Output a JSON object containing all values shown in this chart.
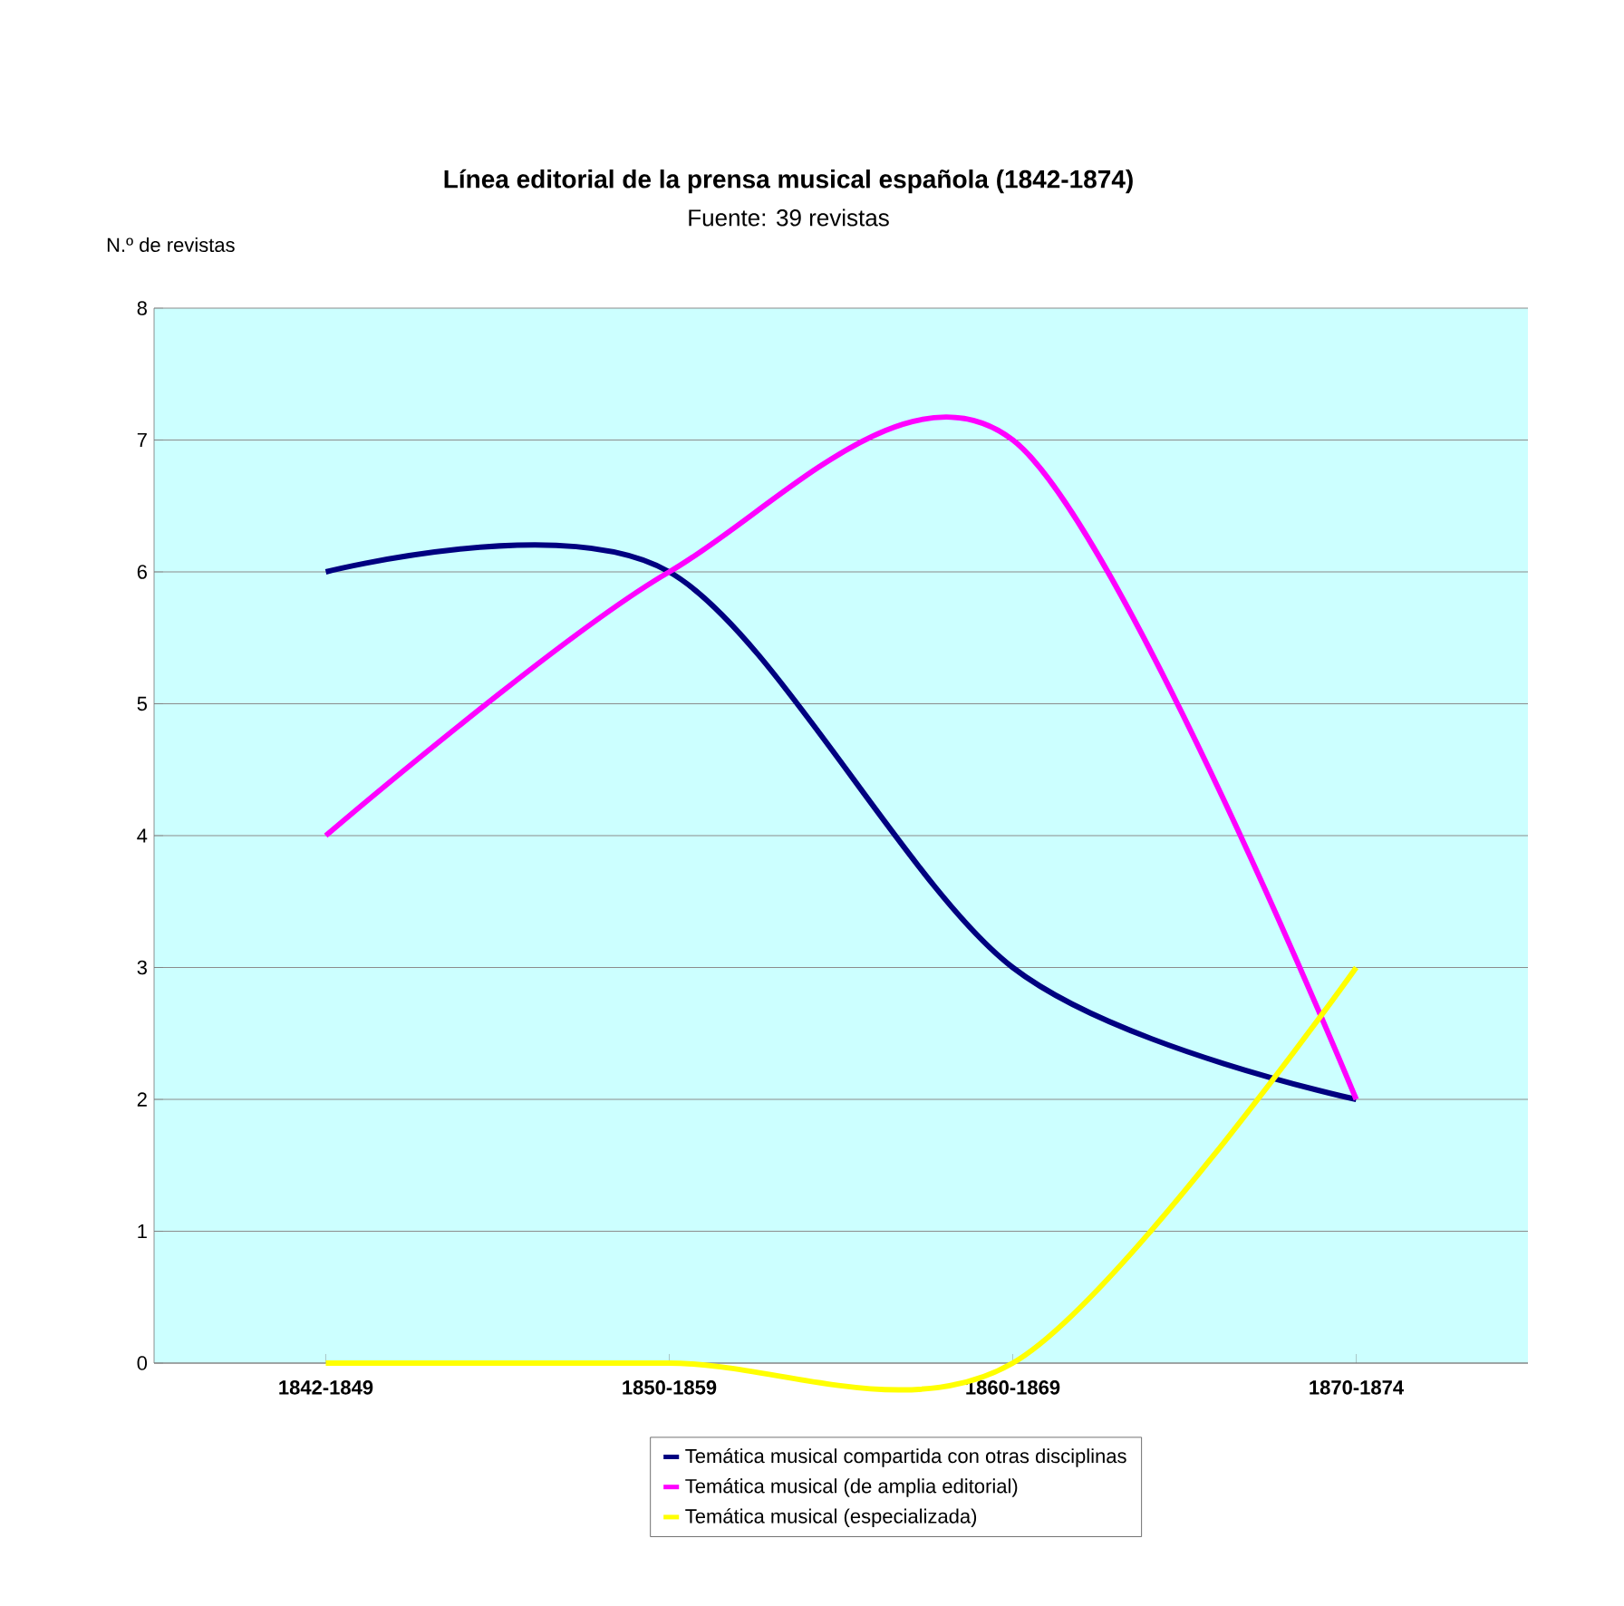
{
  "chart_data": {
    "type": "line",
    "title": "Línea editorial de la prensa musical española (1842-1874)",
    "subtitle": "Fuente: 39 revistas",
    "ylabel": "N.º de revistas",
    "categories": [
      "1842-1849",
      "1850-1859",
      "1860-1869",
      "1870-1874"
    ],
    "series": [
      {
        "name": "Temática musical compartida con otras disciplinas",
        "color": "#000080",
        "values": [
          6,
          6,
          3,
          2
        ]
      },
      {
        "name": "Temática musical (de amplia editorial)",
        "color": "#ff00ff",
        "values": [
          4,
          6,
          7,
          2
        ]
      },
      {
        "name": "Temática musical (especializada)",
        "color": "#ffff00",
        "values": [
          0,
          0,
          0,
          3
        ]
      }
    ],
    "ylim": [
      0,
      8
    ],
    "yticks": [
      0,
      1,
      2,
      3,
      4,
      5,
      6,
      7,
      8
    ],
    "grid": "y",
    "legend": "bottom"
  }
}
